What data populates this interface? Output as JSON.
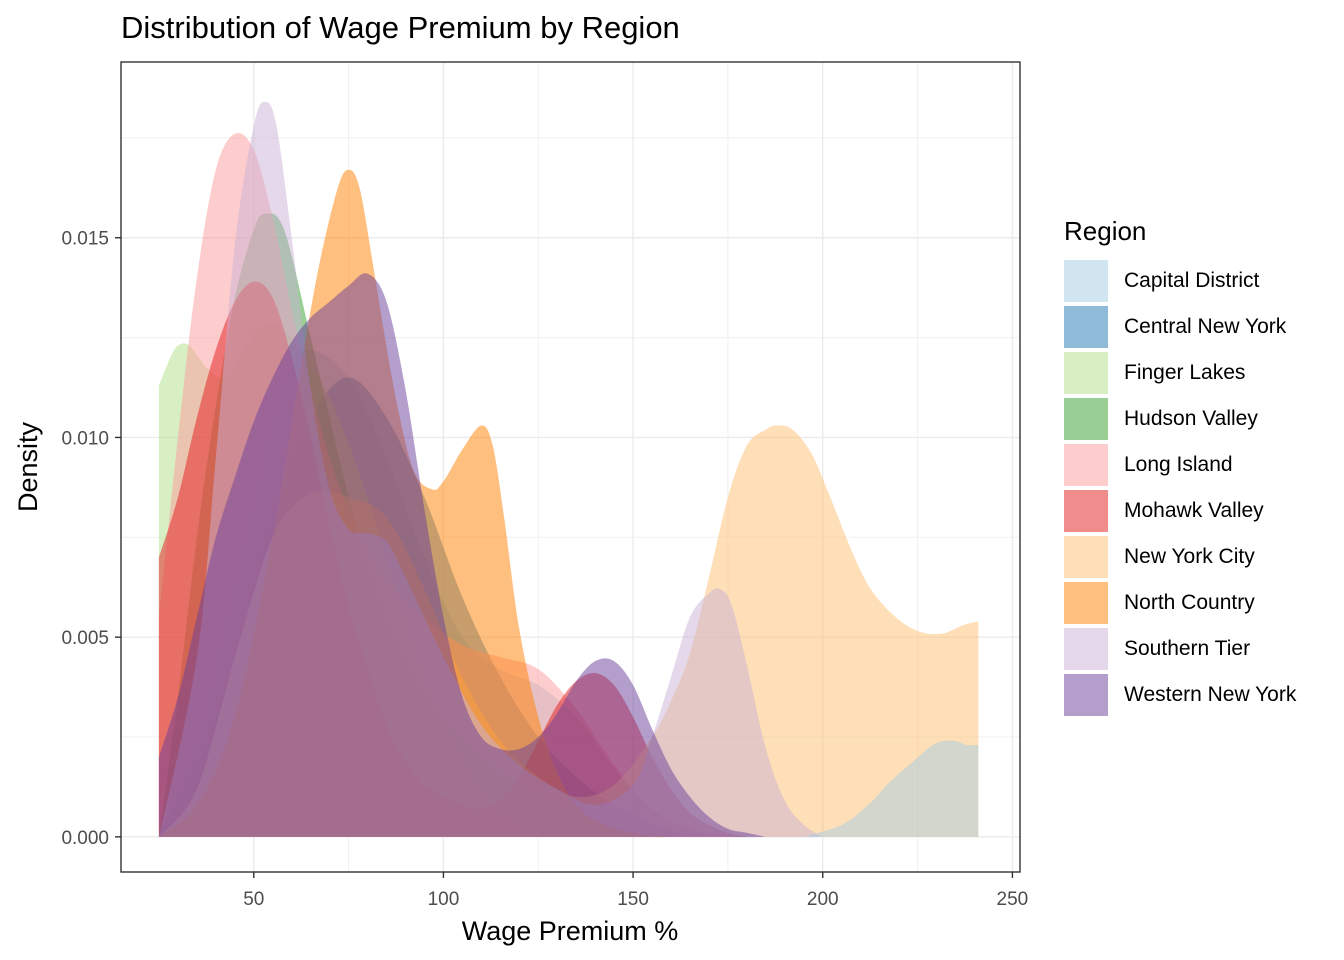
{
  "chart_data": {
    "type": "area",
    "title": "Distribution of Wage Premium by Region",
    "xlabel": "Wage Premium %",
    "ylabel": "Density",
    "xlim": [
      15,
      252
    ],
    "ylim": [
      -0.00088,
      0.0194
    ],
    "x_ticks": [
      50,
      100,
      150,
      200,
      250
    ],
    "x_tick_labels": [
      "50",
      "100",
      "150",
      "200",
      "250"
    ],
    "y_ticks": [
      0,
      0.005,
      0.01,
      0.015
    ],
    "y_tick_labels": [
      "0.000",
      "0.005",
      "0.010",
      "0.015"
    ],
    "grid": true,
    "legend_title": "Region",
    "legend_position": "right",
    "series": [
      {
        "name": "Capital District",
        "color": "#A6CEE3",
        "x": [
          25,
          35,
          45,
          55,
          60,
          65,
          75,
          85,
          95,
          105,
          115,
          125,
          135,
          145,
          155,
          165,
          175,
          185
        ],
        "y": [
          0.0,
          0.0025,
          0.0065,
          0.0105,
          0.0118,
          0.0122,
          0.0115,
          0.0095,
          0.007,
          0.005,
          0.0042,
          0.0038,
          0.003,
          0.0017,
          0.0007,
          0.0002,
          0.0,
          0.0
        ]
      },
      {
        "name": "Central New York",
        "color": "#1F78B4",
        "x": [
          25,
          35,
          45,
          55,
          65,
          75,
          85,
          95,
          105,
          115,
          125,
          135,
          145,
          155,
          165
        ],
        "y": [
          0.0,
          0.0018,
          0.0045,
          0.008,
          0.0105,
          0.0115,
          0.0105,
          0.0085,
          0.006,
          0.004,
          0.0025,
          0.0015,
          0.0008,
          0.0003,
          0.0
        ]
      },
      {
        "name": "Finger Lakes",
        "color": "#B2DF8A",
        "x": [
          25,
          28,
          30,
          33,
          38,
          43,
          48,
          53,
          60,
          70,
          80,
          90,
          100,
          110,
          120,
          130,
          140
        ],
        "y": [
          0.0113,
          0.012,
          0.0123,
          0.0123,
          0.0117,
          0.0115,
          0.0123,
          0.0128,
          0.0125,
          0.011,
          0.0085,
          0.0055,
          0.003,
          0.0012,
          0.0003,
          0.0001,
          0.0
        ]
      },
      {
        "name": "Hudson Valley",
        "color": "#33A02C",
        "x": [
          25,
          30,
          35,
          40,
          45,
          50,
          53,
          58,
          65,
          70,
          75,
          80,
          90,
          100,
          110,
          120,
          130,
          140,
          150,
          160
        ],
        "y": [
          0.0,
          0.0035,
          0.0075,
          0.0108,
          0.0135,
          0.0152,
          0.0156,
          0.0152,
          0.0125,
          0.0105,
          0.0085,
          0.0068,
          0.0045,
          0.003,
          0.002,
          0.0013,
          0.0008,
          0.0004,
          0.0001,
          0.0
        ]
      },
      {
        "name": "Long Island",
        "color": "#FB9A99",
        "x": [
          25,
          30,
          35,
          40,
          45,
          50,
          55,
          60,
          65,
          70,
          75,
          85,
          95,
          105,
          115,
          125,
          135,
          145,
          155,
          165,
          175
        ],
        "y": [
          0.0055,
          0.01,
          0.014,
          0.0167,
          0.0176,
          0.0172,
          0.0155,
          0.0132,
          0.0112,
          0.0095,
          0.0082,
          0.0065,
          0.0055,
          0.0048,
          0.0045,
          0.0042,
          0.0032,
          0.0018,
          0.0007,
          0.0002,
          0.0
        ]
      },
      {
        "name": "Mohawk Valley",
        "color": "#E31A1C",
        "x": [
          25,
          30,
          35,
          40,
          45,
          50,
          55,
          60,
          65,
          70,
          75,
          80,
          85,
          90,
          95,
          100,
          105,
          110,
          115,
          120,
          125,
          130,
          135,
          140,
          145,
          150,
          155,
          160,
          165,
          170,
          175,
          180
        ],
        "y": [
          0.007,
          0.0085,
          0.0105,
          0.0122,
          0.0134,
          0.0139,
          0.0135,
          0.012,
          0.01,
          0.0078,
          0.0058,
          0.0042,
          0.0028,
          0.0019,
          0.0013,
          0.001,
          0.0008,
          0.0007,
          0.0009,
          0.0015,
          0.0024,
          0.0033,
          0.0039,
          0.0041,
          0.0038,
          0.003,
          0.002,
          0.0012,
          0.0006,
          0.0003,
          0.0001,
          0.0
        ]
      },
      {
        "name": "New York City",
        "color": "#FDBF6F",
        "x": [
          25,
          35,
          45,
          55,
          65,
          75,
          85,
          95,
          105,
          115,
          125,
          135,
          145,
          155,
          160,
          165,
          170,
          175,
          180,
          185,
          188,
          192,
          197,
          202,
          207,
          212,
          217,
          222,
          227,
          232,
          237,
          241
        ],
        "y": [
          0.0,
          0.0012,
          0.0045,
          0.0075,
          0.0086,
          0.0085,
          0.008,
          0.0062,
          0.004,
          0.0024,
          0.0015,
          0.001,
          0.0013,
          0.0025,
          0.0034,
          0.0046,
          0.0065,
          0.0085,
          0.0098,
          0.0102,
          0.0103,
          0.0102,
          0.0096,
          0.0085,
          0.0073,
          0.0063,
          0.0057,
          0.0053,
          0.0051,
          0.0051,
          0.0053,
          0.0054
        ]
      },
      {
        "name": "North Country",
        "color": "#FF7F00",
        "x": [
          25,
          35,
          45,
          55,
          62,
          67,
          72,
          75,
          78,
          82,
          87,
          92,
          97,
          100,
          105,
          110,
          113,
          116,
          120,
          125,
          130,
          135,
          140,
          145,
          150,
          155,
          160
        ],
        "y": [
          0.0,
          0.0008,
          0.003,
          0.0075,
          0.0115,
          0.0142,
          0.0162,
          0.0167,
          0.0162,
          0.014,
          0.0112,
          0.0092,
          0.0087,
          0.0089,
          0.0097,
          0.0103,
          0.0098,
          0.008,
          0.0052,
          0.003,
          0.0016,
          0.0008,
          0.0004,
          0.0002,
          0.0001,
          0.0,
          0.0
        ]
      },
      {
        "name": "Southern Tier",
        "color": "#CAB2D6",
        "x": [
          25,
          35,
          40,
          45,
          50,
          53,
          56,
          60,
          65,
          70,
          75,
          80,
          85,
          90,
          100,
          110,
          120,
          130,
          140,
          150,
          155,
          160,
          165,
          170,
          173,
          176,
          180,
          185,
          190,
          195,
          200
        ],
        "y": [
          0.0,
          0.0045,
          0.0095,
          0.0148,
          0.0178,
          0.0184,
          0.0178,
          0.015,
          0.0112,
          0.0087,
          0.0077,
          0.0076,
          0.0074,
          0.0065,
          0.0045,
          0.0028,
          0.0018,
          0.0012,
          0.0008,
          0.0013,
          0.0025,
          0.004,
          0.0055,
          0.0061,
          0.0062,
          0.0058,
          0.0043,
          0.0022,
          0.0009,
          0.0003,
          0.0
        ]
      },
      {
        "name": "Western New York",
        "color": "#6A3D9A",
        "x": [
          25,
          30,
          35,
          40,
          45,
          50,
          55,
          60,
          65,
          70,
          75,
          80,
          85,
          90,
          95,
          100,
          105,
          110,
          115,
          120,
          125,
          130,
          135,
          140,
          145,
          150,
          155,
          160,
          165,
          170,
          175,
          180,
          185
        ],
        "y": [
          0.002,
          0.0035,
          0.0055,
          0.0075,
          0.009,
          0.0104,
          0.0115,
          0.0124,
          0.013,
          0.0134,
          0.0138,
          0.0141,
          0.0134,
          0.0112,
          0.0082,
          0.0055,
          0.0035,
          0.0025,
          0.0022,
          0.0022,
          0.0025,
          0.0031,
          0.0039,
          0.0044,
          0.0044,
          0.0038,
          0.0027,
          0.0017,
          0.001,
          0.0005,
          0.0002,
          0.0001,
          0.0
        ]
      },
      {
        "name": "Capital District",
        "color": "#A6CEE3",
        "x": [
          195,
          205,
          212,
          218,
          224,
          229,
          232,
          235,
          238,
          241
        ],
        "y": [
          0.0,
          0.0003,
          0.0008,
          0.0014,
          0.0019,
          0.0023,
          0.0024,
          0.0024,
          0.0023,
          0.0023
        ]
      }
    ]
  },
  "legend": {
    "title": "Region",
    "items": [
      {
        "label": "Capital District",
        "color": "#A6CEE3"
      },
      {
        "label": "Central New York",
        "color": "#1F78B4"
      },
      {
        "label": "Finger Lakes",
        "color": "#B2DF8A"
      },
      {
        "label": "Hudson Valley",
        "color": "#33A02C"
      },
      {
        "label": "Long Island",
        "color": "#FB9A99"
      },
      {
        "label": "Mohawk Valley",
        "color": "#E31A1C"
      },
      {
        "label": "New York City",
        "color": "#FDBF6F"
      },
      {
        "label": "North Country",
        "color": "#FF7F00"
      },
      {
        "label": "Southern Tier",
        "color": "#CAB2D6"
      },
      {
        "label": "Western New York",
        "color": "#6A3D9A"
      }
    ]
  }
}
